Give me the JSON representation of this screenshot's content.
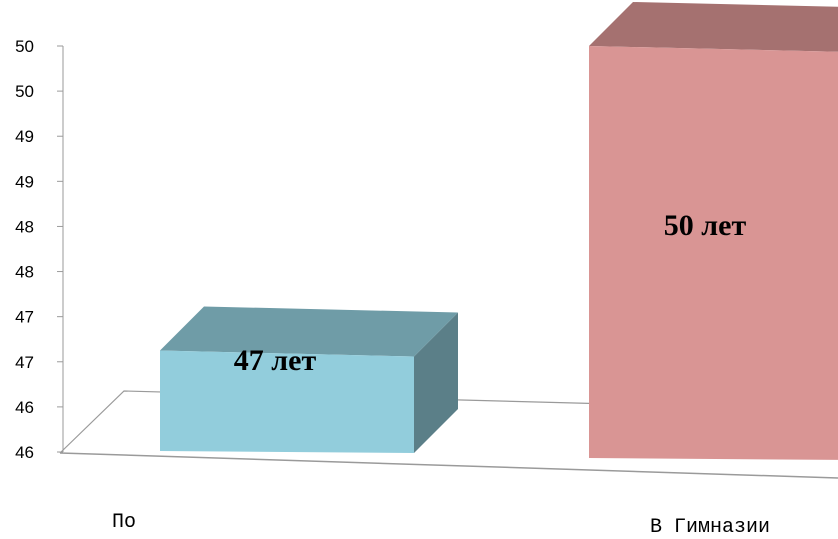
{
  "chart_data": {
    "type": "bar",
    "style": "3d-column",
    "categories": [
      "По",
      "В Гимназии"
    ],
    "values": [
      47.0,
      50.0
    ],
    "data_labels": [
      "47 лет",
      "50 лет"
    ],
    "colors": [
      "#92cddc",
      "#d99594"
    ],
    "y_tick_labels": [
      "46",
      "46",
      "47",
      "47",
      "48",
      "48",
      "49",
      "49",
      "50",
      "50"
    ],
    "ylim": [
      46,
      50
    ],
    "grid": false,
    "legend": "none"
  }
}
